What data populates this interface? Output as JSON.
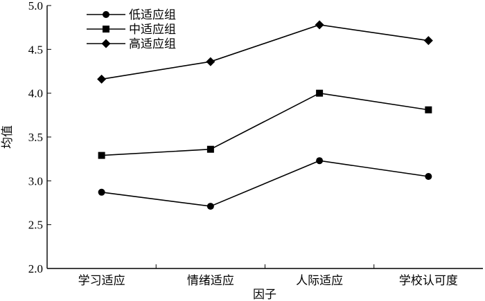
{
  "chart_data": {
    "type": "line",
    "categories": [
      "学习适应",
      "情绪适应",
      "人际适应",
      "学校认可度"
    ],
    "series": [
      {
        "name": "低适应组",
        "marker": "circle",
        "values": [
          2.87,
          2.71,
          3.23,
          3.05
        ]
      },
      {
        "name": "中适应组",
        "marker": "square",
        "values": [
          3.29,
          3.36,
          4.0,
          3.81
        ]
      },
      {
        "name": "高适应组",
        "marker": "diamond",
        "values": [
          4.16,
          4.36,
          4.78,
          4.6
        ]
      }
    ],
    "xlabel": "因子",
    "ylabel": "均值",
    "ylim": [
      2.0,
      5.0
    ],
    "yticks": [
      "2.0",
      "2.5",
      "3.0",
      "3.5",
      "4.0",
      "4.5",
      "5.0"
    ],
    "legend_position": "top-left",
    "grid": false,
    "color": "#000000"
  }
}
